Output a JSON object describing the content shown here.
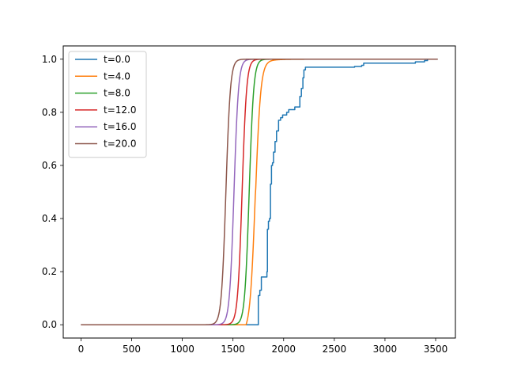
{
  "chart_data": {
    "type": "line",
    "title": "",
    "xlabel": "",
    "ylabel": "",
    "xlim": [
      -175,
      3695
    ],
    "ylim": [
      -0.05,
      1.05
    ],
    "xticks": [
      0,
      500,
      1000,
      1500,
      2000,
      2500,
      3000,
      3500
    ],
    "yticks": [
      0.0,
      0.2,
      0.4,
      0.6,
      0.8,
      1.0
    ],
    "xtick_labels": [
      "0",
      "500",
      "1000",
      "1500",
      "2000",
      "2500",
      "3000",
      "3500"
    ],
    "ytick_labels": [
      "0.0",
      "0.2",
      "0.4",
      "0.6",
      "0.8",
      "1.0"
    ],
    "grid": false,
    "legend_position": "upper-left",
    "series": [
      {
        "name": "t=0.0",
        "color": "#1f77b4",
        "step": true,
        "x": [
          0,
          1750,
          1750,
          1765,
          1780,
          1830,
          1835,
          1840,
          1850,
          1860,
          1870,
          1880,
          1890,
          1900,
          1915,
          1930,
          1950,
          1970,
          1990,
          2030,
          2050,
          2080,
          2110,
          2150,
          2160,
          2175,
          2190,
          2200,
          2215,
          2230,
          2280,
          2700,
          2770,
          2790,
          3280,
          3300,
          3390,
          3420,
          3520
        ],
        "y": [
          0.0,
          0.0,
          0.11,
          0.13,
          0.18,
          0.18,
          0.2,
          0.36,
          0.39,
          0.4,
          0.53,
          0.6,
          0.61,
          0.65,
          0.69,
          0.73,
          0.77,
          0.78,
          0.79,
          0.8,
          0.81,
          0.81,
          0.82,
          0.82,
          0.86,
          0.89,
          0.93,
          0.96,
          0.97,
          0.97,
          0.97,
          0.973,
          0.977,
          0.985,
          0.985,
          0.99,
          0.995,
          1.0,
          1.0
        ]
      },
      {
        "name": "t=4.0",
        "color": "#ff7f0e",
        "logistic": {
          "mid": 1720,
          "width": 26,
          "tail": 95
        }
      },
      {
        "name": "t=8.0",
        "color": "#2ca02c",
        "logistic": {
          "mid": 1660,
          "width": 22
        }
      },
      {
        "name": "t=12.0",
        "color": "#d62728",
        "logistic": {
          "mid": 1590,
          "width": 22
        }
      },
      {
        "name": "t=16.0",
        "color": "#9467bd",
        "logistic": {
          "mid": 1510,
          "width": 22
        }
      },
      {
        "name": "t=20.0",
        "color": "#8c564b",
        "logistic": {
          "mid": 1430,
          "width": 22
        }
      }
    ]
  }
}
